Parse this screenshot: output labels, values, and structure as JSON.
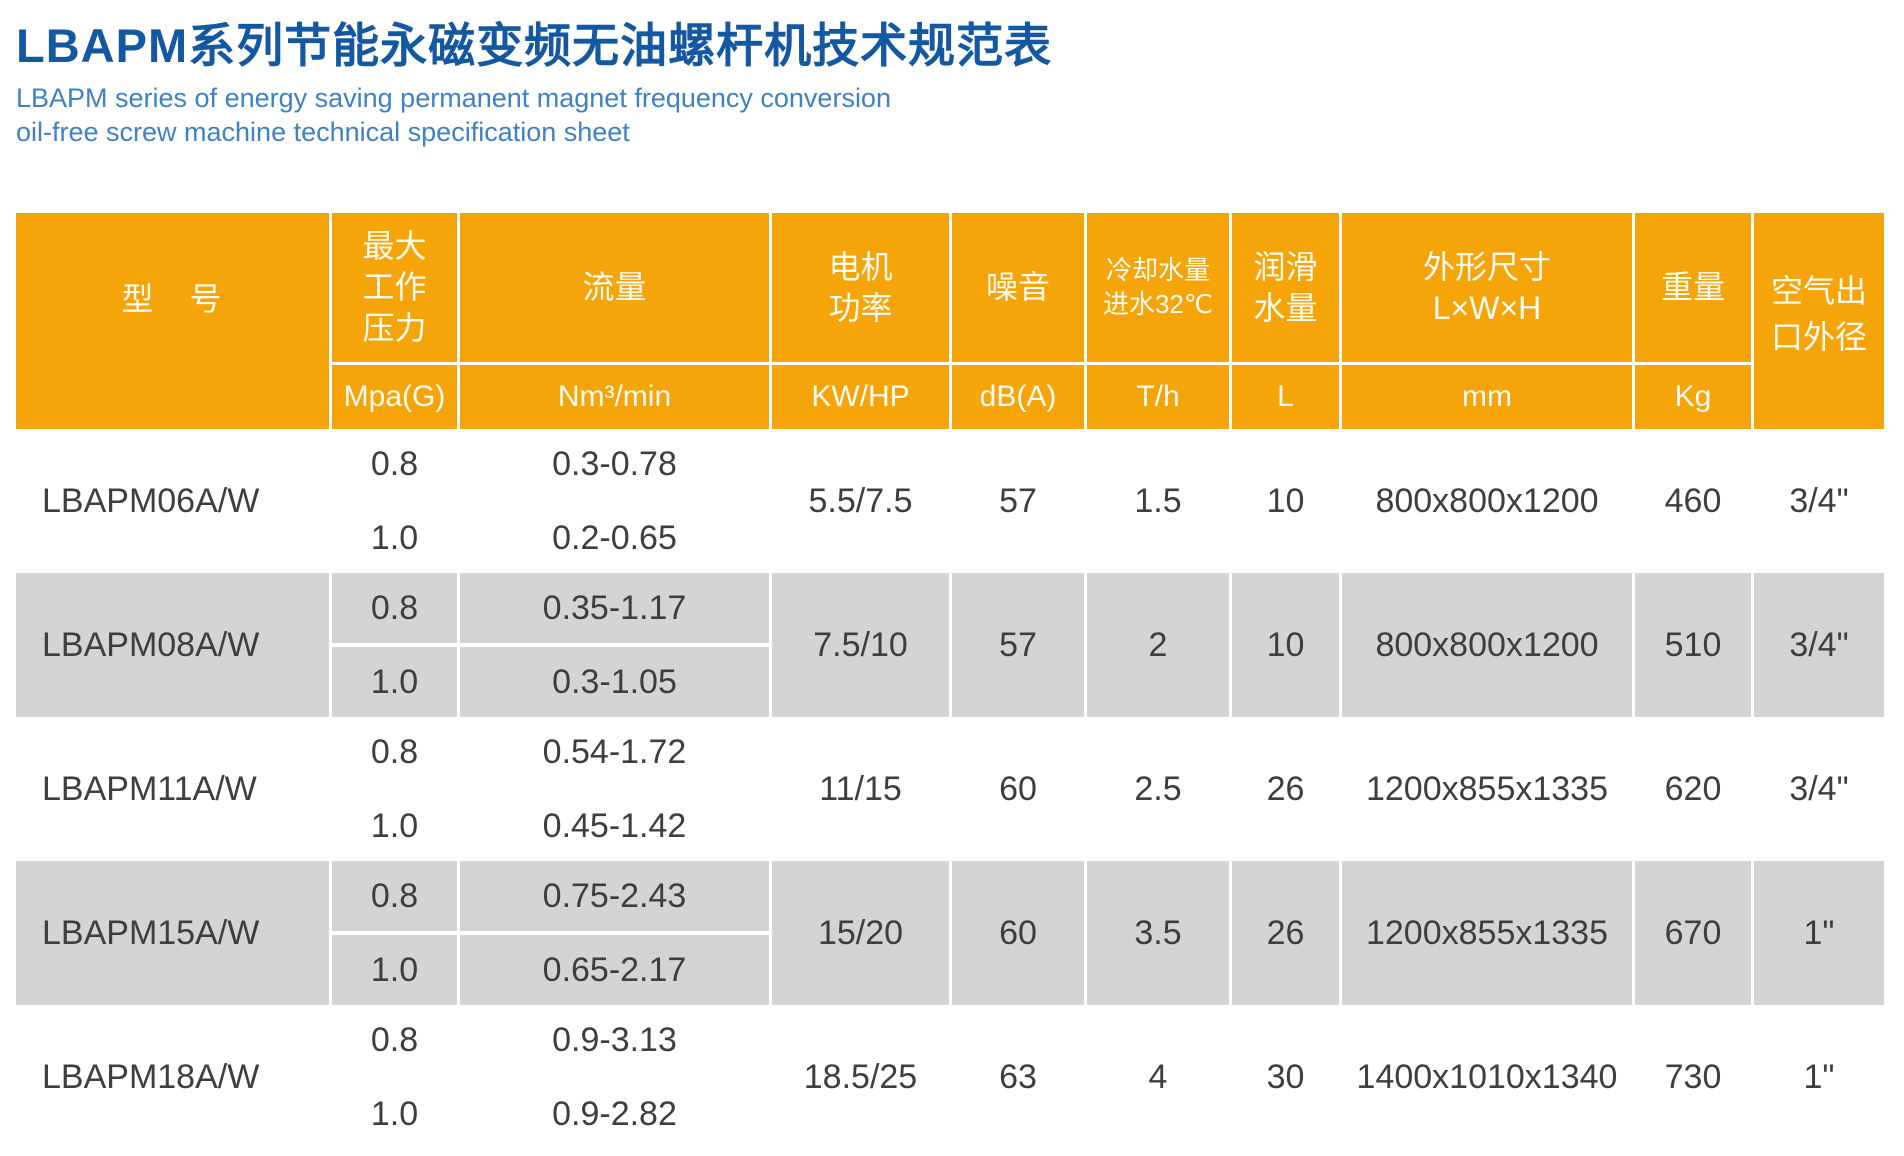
{
  "page": {
    "title": "LBAPM系列节能永磁变频无油螺杆机技术规范表",
    "subtitle_line1": "LBAPM series of energy saving permanent magnet frequency conversion",
    "subtitle_line2": "oil-free screw machine technical specification sheet"
  },
  "table": {
    "header": {
      "model": "型　号",
      "pressure_label": "最大\n工作\n压力",
      "pressure_unit": "Mpa(G)",
      "flow_label": "流量",
      "flow_unit": "Nm³/min",
      "motor_label": "电机\n功率",
      "motor_unit": "KW/HP",
      "noise_label": "噪音",
      "noise_unit": "dB(A)",
      "cooling_label": "冷却水量\n进水32℃",
      "cooling_unit": "T/h",
      "lube_label": "润滑\n水量",
      "lube_unit": "L",
      "dimensions_label": "外形尺寸\nL×W×H",
      "dimensions_unit": "mm",
      "weight_label": "重量",
      "weight_unit": "Kg",
      "outlet_label": "空气出\n口外径"
    },
    "rows": [
      {
        "model": "LBAPM06A/W",
        "variants": [
          {
            "pressure": "0.8",
            "flow": "0.3-0.78"
          },
          {
            "pressure": "1.0",
            "flow": "0.2-0.65"
          }
        ],
        "motor_power": "5.5/7.5",
        "noise": "57",
        "cooling_water": "1.5",
        "lube_water": "10",
        "dimensions": "800x800x1200",
        "weight": "460",
        "air_outlet": "3/4\""
      },
      {
        "model": "LBAPM08A/W",
        "variants": [
          {
            "pressure": "0.8",
            "flow": "0.35-1.17"
          },
          {
            "pressure": "1.0",
            "flow": "0.3-1.05"
          }
        ],
        "motor_power": "7.5/10",
        "noise": "57",
        "cooling_water": "2",
        "lube_water": "10",
        "dimensions": "800x800x1200",
        "weight": "510",
        "air_outlet": "3/4\""
      },
      {
        "model": "LBAPM11A/W",
        "variants": [
          {
            "pressure": "0.8",
            "flow": "0.54-1.72"
          },
          {
            "pressure": "1.0",
            "flow": "0.45-1.42"
          }
        ],
        "motor_power": "11/15",
        "noise": "60",
        "cooling_water": "2.5",
        "lube_water": "26",
        "dimensions": "1200x855x1335",
        "weight": "620",
        "air_outlet": "3/4\""
      },
      {
        "model": "LBAPM15A/W",
        "variants": [
          {
            "pressure": "0.8",
            "flow": "0.75-2.43"
          },
          {
            "pressure": "1.0",
            "flow": "0.65-2.17"
          }
        ],
        "motor_power": "15/20",
        "noise": "60",
        "cooling_water": "3.5",
        "lube_water": "26",
        "dimensions": "1200x855x1335",
        "weight": "670",
        "air_outlet": "1\""
      },
      {
        "model": "LBAPM18A/W",
        "variants": [
          {
            "pressure": "0.8",
            "flow": "0.9-3.13"
          },
          {
            "pressure": "1.0",
            "flow": "0.9-2.82"
          }
        ],
        "motor_power": "18.5/25",
        "noise": "63",
        "cooling_water": "4",
        "lube_water": "30",
        "dimensions": "1400x1010x1340",
        "weight": "730",
        "air_outlet": "1\""
      }
    ]
  },
  "colors": {
    "header_bg": "#F5A50A",
    "row_alt_bg": "#D4D4D4",
    "title_blue": "#1458A2",
    "subtitle_blue": "#3E82C4"
  }
}
